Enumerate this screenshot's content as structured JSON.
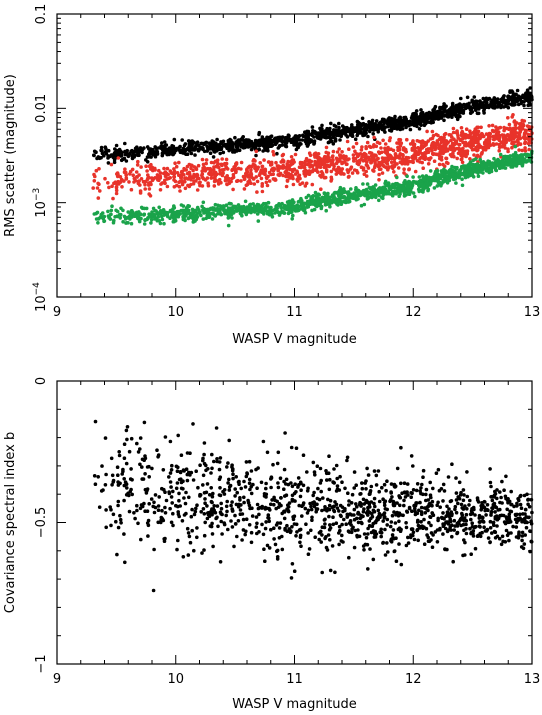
{
  "chart_data": [
    {
      "type": "scatter",
      "xlabel": "WASP V magnitude",
      "ylabel": "RMS scatter (magnitude)",
      "xlim": [
        9,
        13
      ],
      "ylim": [
        0.0001,
        0.1
      ],
      "yscale": "log",
      "x_ticks": [
        9,
        10,
        11,
        12,
        13
      ],
      "x_tick_labels": [
        "9",
        "10",
        "11",
        "12",
        "13"
      ],
      "y_ticks": [
        0.0001,
        0.001,
        0.01,
        0.1
      ],
      "y_tick_labels": [
        {
          "base": "10",
          "exp": "−4"
        },
        {
          "base": "10",
          "exp": "−3"
        },
        {
          "text": "0.01"
        },
        {
          "text": "0.1"
        }
      ],
      "series": [
        {
          "color": "#000000",
          "x_range": [
            9.3,
            13.0
          ],
          "trend": {
            "x": [
              9.3,
              10,
              11,
              12,
              13
            ],
            "y": [
              0.0032,
              0.0036,
              0.0046,
              0.0072,
              0.0135
            ]
          },
          "scatter_dex": 0.04,
          "count": 1400
        },
        {
          "color": "#e8332a",
          "x_range": [
            9.3,
            13.0
          ],
          "trend": {
            "x": [
              9.3,
              10,
              11,
              12,
              13
            ],
            "y": [
              0.0016,
              0.0019,
              0.0023,
              0.0033,
              0.0055
            ]
          },
          "scatter_dex": 0.08,
          "count": 1400
        },
        {
          "color": "#1aa34a",
          "x_range": [
            9.3,
            13.0
          ],
          "trend": {
            "x": [
              9.3,
              10,
              11,
              12,
              13
            ],
            "y": [
              0.0007,
              0.00075,
              0.0009,
              0.0015,
              0.003
            ]
          },
          "scatter_dex": 0.04,
          "count": 1400
        }
      ]
    },
    {
      "type": "scatter",
      "xlabel": "WASP V magnitude",
      "ylabel": "Covariance spectral index b",
      "xlim": [
        9,
        13
      ],
      "ylim": [
        -1,
        0
      ],
      "x_ticks": [
        9,
        10,
        11,
        12,
        13
      ],
      "x_tick_labels": [
        "9",
        "10",
        "11",
        "12",
        "13"
      ],
      "y_ticks": [
        -1,
        -0.5,
        0
      ],
      "y_tick_labels": [
        "−1",
        "−0.5",
        "0"
      ],
      "series": [
        {
          "color": "#000000",
          "x_range": [
            9.3,
            13.0
          ],
          "trend": {
            "x": [
              9.3,
              10,
              11,
              12,
              13
            ],
            "y": [
              -0.38,
              -0.4,
              -0.45,
              -0.47,
              -0.48
            ]
          },
          "scatter_y": 0.05,
          "count": 1300
        }
      ]
    }
  ]
}
